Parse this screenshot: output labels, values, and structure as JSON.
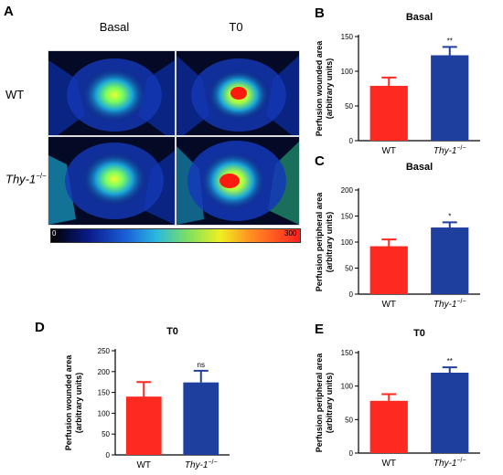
{
  "panel_a": {
    "letter": "A",
    "col_labels": [
      "Basal",
      "T0"
    ],
    "row_labels": [
      {
        "name": "WT",
        "sup": ""
      },
      {
        "name": "Thy-1",
        "sup": "−/−"
      }
    ],
    "scale_min": "0",
    "scale_max": "300"
  },
  "colors": {
    "wt": "#ff2a1f",
    "ko": "#1f3f9e"
  },
  "chart_data": [
    {
      "id": "B",
      "type": "bar",
      "title": "Basal",
      "ylabel": "Perfusion wounded area (arbitrary units)",
      "ylabel_lines": [
        "Perfusion wounded area",
        "(arbitrary units)"
      ],
      "categories": [
        "WT",
        "Thy-1"
      ],
      "category_sup": [
        "",
        "−/−"
      ],
      "values": [
        79,
        123
      ],
      "errors": [
        12,
        12
      ],
      "significance": [
        "",
        "**"
      ],
      "ylim": [
        0,
        150
      ],
      "yticks": [
        0,
        50,
        100,
        150
      ]
    },
    {
      "id": "C",
      "type": "bar",
      "title": "Basal",
      "ylabel": "Perfusion peripheral area (arbitrary units)",
      "ylabel_lines": [
        "Perfusion peripheral area",
        "(arbitrary units)"
      ],
      "categories": [
        "WT",
        "Thy-1"
      ],
      "category_sup": [
        "",
        "−/−"
      ],
      "values": [
        92,
        128
      ],
      "errors": [
        13,
        10
      ],
      "significance": [
        "",
        "*"
      ],
      "ylim": [
        0,
        200
      ],
      "yticks": [
        0,
        50,
        100,
        150,
        200
      ]
    },
    {
      "id": "D",
      "type": "bar",
      "title": "T0",
      "ylabel": "Perfusion wounded area (arbitrary units)",
      "ylabel_lines": [
        "Perfusion wounded area",
        "(arbitrary units)"
      ],
      "categories": [
        "WT",
        "Thy-1"
      ],
      "category_sup": [
        "",
        "−/−"
      ],
      "values": [
        140,
        174
      ],
      "errors": [
        35,
        28
      ],
      "significance": [
        "",
        "ns"
      ],
      "ylim": [
        0,
        250
      ],
      "yticks": [
        0,
        50,
        100,
        150,
        200,
        250
      ]
    },
    {
      "id": "E",
      "type": "bar",
      "title": "T0",
      "ylabel": "Perfusion peripheral area (arbitrary units)",
      "ylabel_lines": [
        "Perfusion peripheral area",
        "(arbitrary units)"
      ],
      "categories": [
        "WT",
        "Thy-1"
      ],
      "category_sup": [
        "",
        "−/−"
      ],
      "values": [
        78,
        120
      ],
      "errors": [
        10,
        8
      ],
      "significance": [
        "",
        "**"
      ],
      "ylim": [
        0,
        150
      ],
      "yticks": [
        0,
        50,
        100,
        150
      ]
    }
  ]
}
